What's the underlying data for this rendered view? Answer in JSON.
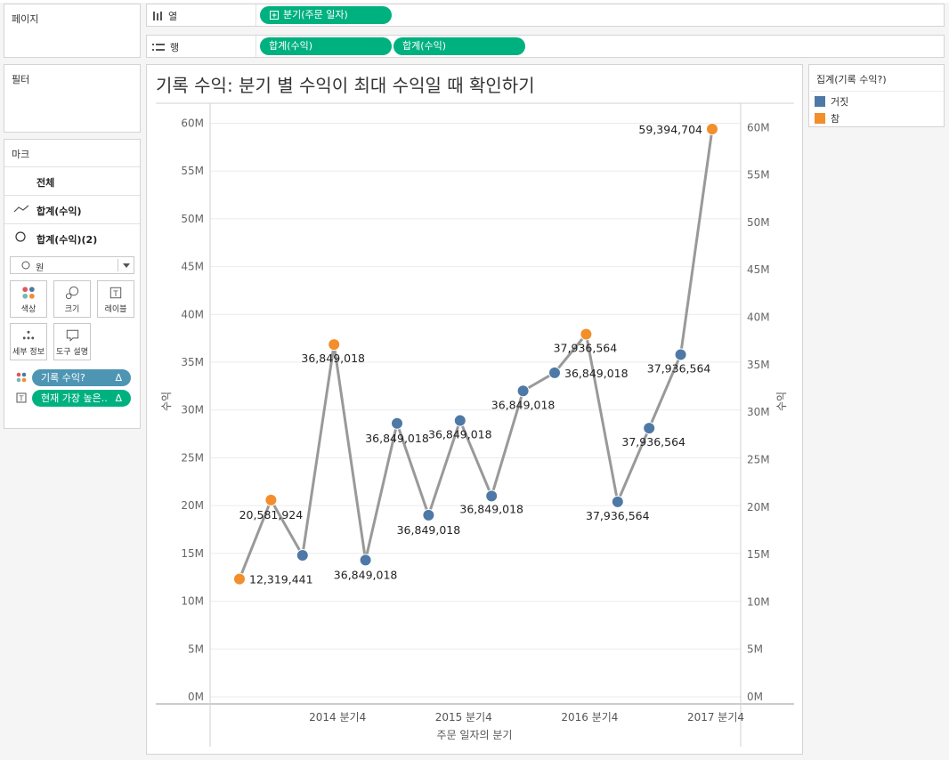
{
  "pages_panel": {
    "title": "페이지"
  },
  "filters_panel": {
    "title": "필터"
  },
  "marks_panel": {
    "title": "마크",
    "rows": [
      {
        "label": "전체",
        "icon": ""
      },
      {
        "label": "합계(수익)",
        "icon": "line-icon"
      },
      {
        "label": "합계(수익)(2)",
        "icon": "circle-icon"
      }
    ],
    "mark_type": "원",
    "buttons": [
      {
        "label": "색상",
        "icon": "color-icon"
      },
      {
        "label": "크기",
        "icon": "size-icon"
      },
      {
        "label": "레이블",
        "icon": "label-icon"
      },
      {
        "label": "세부 정보",
        "icon": "detail-icon"
      },
      {
        "label": "도구 설명",
        "icon": "tooltip-icon"
      }
    ],
    "fields": [
      {
        "label": "기록 수익?",
        "delta": "Δ",
        "color": "#4e95b3",
        "icon": "color-dots-icon"
      },
      {
        "label": "현재 가장 높은..",
        "delta": "Δ",
        "color": "#00b180",
        "icon": "text-icon"
      }
    ]
  },
  "columns_shelf": {
    "label": "열",
    "pills": [
      "분기(주문 일자)"
    ]
  },
  "rows_shelf": {
    "label": "행",
    "pills": [
      "합계(수익)",
      "합계(수익)"
    ]
  },
  "legend": {
    "title": "집계(기록 수익?)",
    "items": [
      {
        "label": "거짓",
        "color": "#4e79a7"
      },
      {
        "label": "참",
        "color": "#f28e2b"
      }
    ]
  },
  "colors": {
    "line": "#999999",
    "false": "#4e79a7",
    "true": "#f28e2b",
    "grid": "#ebebeb"
  },
  "chart_data": {
    "type": "line",
    "title": "기록 수익: 분기 별 수익이 최대 수익일 때 확인하기",
    "xlabel": "주문 일자의 분기",
    "ylabel_left": "수익",
    "ylabel_right": "수익",
    "ylim": [
      0,
      62000000
    ],
    "y_ticks": [
      0,
      5000000,
      10000000,
      15000000,
      20000000,
      25000000,
      30000000,
      35000000,
      40000000,
      45000000,
      50000000,
      55000000,
      60000000
    ],
    "y_tick_labels": [
      "0M",
      "5M",
      "10M",
      "15M",
      "20M",
      "25M",
      "30M",
      "35M",
      "40M",
      "45M",
      "50M",
      "55M",
      "60M"
    ],
    "x_tick_labels": [
      "2014 분기4",
      "2015 분기4",
      "2016 분기4",
      "2017 분기4"
    ],
    "x_tick_indices": [
      4,
      8,
      12,
      16
    ],
    "series": [
      {
        "values": [
          12319441,
          20581924,
          14800000,
          36849018,
          14300000,
          28600000,
          19000000,
          28900000,
          21000000,
          32000000,
          33900000,
          37936564,
          20400000,
          28100000,
          35800000,
          59394704
        ],
        "is_record": [
          true,
          true,
          false,
          true,
          false,
          false,
          false,
          false,
          false,
          false,
          false,
          true,
          false,
          false,
          false,
          true
        ]
      }
    ],
    "data_labels": [
      {
        "index": 0,
        "text": "12,319,441"
      },
      {
        "index": 1,
        "text": "20,581,924"
      },
      {
        "index": 3,
        "text": "36,849,018"
      },
      {
        "index": 4,
        "text": "36,849,018"
      },
      {
        "index": 5,
        "text": "36,849,018"
      },
      {
        "index": 6,
        "text": "36,849,018"
      },
      {
        "index": 7,
        "text": "36,849,018"
      },
      {
        "index": 8,
        "text": "36,849,018"
      },
      {
        "index": 9,
        "text": "36,849,018"
      },
      {
        "index": 10,
        "text": "36,849,018"
      },
      {
        "index": 11,
        "text": "37,936,564"
      },
      {
        "index": 12,
        "text": "37,936,564"
      },
      {
        "index": 13,
        "text": "37,936,564"
      },
      {
        "index": 14,
        "text": "37,936,564"
      },
      {
        "index": 15,
        "text": "59,394,704"
      }
    ],
    "grid": true,
    "legend_position": "right"
  }
}
